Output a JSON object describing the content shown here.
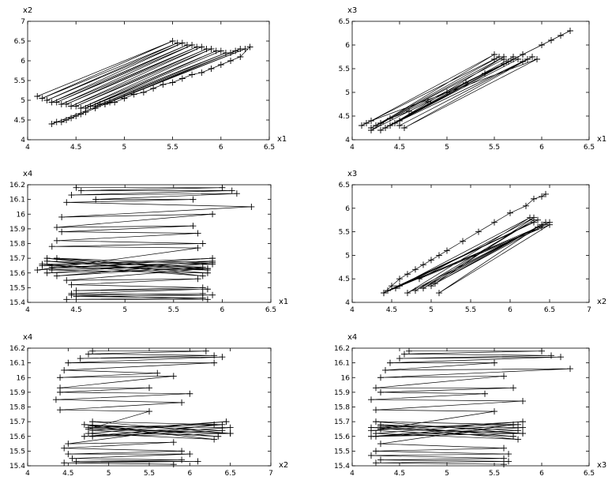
{
  "chart_data": [
    {
      "type": "line",
      "xlabel": "x1",
      "ylabel": "x2",
      "xlim": [
        4,
        6.5
      ],
      "ylim": [
        4,
        7
      ],
      "xticks": [
        "4",
        "4.5",
        "5",
        "5.5",
        "6",
        "6.5"
      ],
      "yticks": [
        "4",
        "4.5",
        "5",
        "5.5",
        "6",
        "6.5",
        "7"
      ],
      "marker": "+",
      "series": [
        {
          "x": [
            4.1,
            5.5,
            4.15,
            5.55,
            4.2,
            5.6,
            4.25,
            5.65,
            4.3,
            5.7,
            4.35,
            5.75,
            4.4,
            5.8,
            4.45,
            5.85,
            4.5,
            5.9,
            4.55,
            5.95,
            4.6,
            6.0,
            4.65,
            6.05,
            4.7,
            6.1,
            4.75,
            6.15,
            4.8,
            6.2,
            4.85,
            6.25,
            4.25,
            4.3,
            4.35,
            4.4,
            4.45,
            4.5,
            4.55,
            4.6,
            4.7,
            4.8,
            4.9,
            5.0,
            5.1,
            5.2,
            5.3,
            5.4,
            5.5,
            5.6,
            5.7,
            5.8,
            5.9,
            6.0,
            6.1,
            6.2,
            6.3
          ],
          "y": [
            5.1,
            6.5,
            5.05,
            6.45,
            5.0,
            6.45,
            4.95,
            6.4,
            4.95,
            6.4,
            4.9,
            6.35,
            4.9,
            6.35,
            4.85,
            6.3,
            4.85,
            6.3,
            4.8,
            6.25,
            4.8,
            6.25,
            4.85,
            6.2,
            4.85,
            6.2,
            4.9,
            6.25,
            4.9,
            6.3,
            4.95,
            6.3,
            4.4,
            4.45,
            4.45,
            4.5,
            4.55,
            4.6,
            4.65,
            4.7,
            4.8,
            4.9,
            4.95,
            5.05,
            5.15,
            5.2,
            5.3,
            5.4,
            5.45,
            5.55,
            5.65,
            5.7,
            5.8,
            5.9,
            6.0,
            6.1,
            6.35
          ]
        }
      ]
    },
    {
      "type": "line",
      "xlabel": "x1",
      "ylabel": "x3",
      "xlim": [
        4,
        6.5
      ],
      "ylim": [
        4,
        6.5
      ],
      "xticks": [
        "4",
        "4.5",
        "5",
        "5.5",
        "6",
        "6.5"
      ],
      "yticks": [
        "4",
        "4.5",
        "5",
        "5.5",
        "6",
        "6.5"
      ],
      "marker": "+",
      "series": [
        {
          "x": [
            4.1,
            5.5,
            4.15,
            5.55,
            4.2,
            5.6,
            4.25,
            5.65,
            4.3,
            5.7,
            4.35,
            5.75,
            4.4,
            5.8,
            4.45,
            5.85,
            4.5,
            5.9,
            4.55,
            5.95,
            4.2,
            5.5,
            4.3,
            5.6,
            4.4,
            5.7,
            4.5,
            5.8,
            4.2,
            4.4,
            4.6,
            4.8,
            5.0,
            5.2,
            5.4,
            5.6,
            5.8,
            6.0,
            6.1,
            6.2,
            6.3
          ],
          "y": [
            4.3,
            5.7,
            4.35,
            5.75,
            4.25,
            5.7,
            4.3,
            5.65,
            4.2,
            5.75,
            4.25,
            5.7,
            4.3,
            5.65,
            4.35,
            5.7,
            4.3,
            5.75,
            4.25,
            5.7,
            4.4,
            5.8,
            4.35,
            5.75,
            4.3,
            5.7,
            4.4,
            5.8,
            4.2,
            4.45,
            4.6,
            4.8,
            5.0,
            5.2,
            5.4,
            5.6,
            5.8,
            6.0,
            6.1,
            6.2,
            6.3
          ]
        }
      ]
    },
    {
      "type": "line",
      "xlabel": "x1",
      "ylabel": "x4",
      "xlim": [
        4,
        6.5
      ],
      "ylim": [
        15.4,
        16.2
      ],
      "xticks": [
        "4",
        "4.5",
        "5",
        "5.5",
        "6",
        "6.5"
      ],
      "yticks": [
        "15.4",
        "15.5",
        "15.6",
        "15.7",
        "15.8",
        "15.9",
        "16",
        "16.1",
        "16.2"
      ],
      "marker": "+",
      "series": [
        {
          "x": [
            4.5,
            6.0,
            4.55,
            6.1,
            4.45,
            6.15,
            4.7,
            5.7,
            4.4,
            6.3,
            4.35,
            5.9,
            4.3,
            5.7,
            4.35,
            5.75,
            4.3,
            5.8,
            4.25,
            5.75,
            4.1,
            5.9,
            4.15,
            5.85,
            4.2,
            5.9,
            4.15,
            5.8,
            4.2,
            5.85,
            4.25,
            5.9,
            4.3,
            5.8,
            4.2,
            5.85,
            4.25,
            5.9,
            4.3,
            5.85,
            4.4,
            5.75,
            4.45,
            5.8,
            4.5,
            5.85,
            4.45,
            5.9,
            4.5,
            5.8,
            4.4,
            5.85,
            4.45,
            5.8
          ],
          "y": [
            16.18,
            16.18,
            16.16,
            16.16,
            16.13,
            16.14,
            16.1,
            16.1,
            16.08,
            16.05,
            15.98,
            16.0,
            15.91,
            15.92,
            15.88,
            15.87,
            15.82,
            15.8,
            15.78,
            15.77,
            15.62,
            15.7,
            15.65,
            15.63,
            15.6,
            15.68,
            15.66,
            15.58,
            15.7,
            15.62,
            15.64,
            15.67,
            15.58,
            15.64,
            15.68,
            15.6,
            15.62,
            15.66,
            15.7,
            15.63,
            15.55,
            15.56,
            15.52,
            15.5,
            15.48,
            15.49,
            15.46,
            15.45,
            15.44,
            15.43,
            15.42,
            15.42,
            15.45,
            15.46
          ]
        }
      ]
    },
    {
      "type": "line",
      "xlabel": "x2",
      "ylabel": "x3",
      "xlim": [
        4,
        7
      ],
      "ylim": [
        4,
        6.5
      ],
      "xticks": [
        "4",
        "4.5",
        "5",
        "5.5",
        "6",
        "6.5",
        "7"
      ],
      "yticks": [
        "4",
        "4.5",
        "5",
        "5.5",
        "6",
        "6.5"
      ],
      "marker": "+",
      "series": [
        {
          "x": [
            4.4,
            6.4,
            4.45,
            6.3,
            4.55,
            6.35,
            4.6,
            6.25,
            4.7,
            6.4,
            4.8,
            6.3,
            4.9,
            6.45,
            5.0,
            6.35,
            5.1,
            6.5,
            4.85,
            6.3,
            5.05,
            6.5,
            4.4,
            4.5,
            4.6,
            4.7,
            4.8,
            4.9,
            5.0,
            5.1,
            5.2,
            5.4,
            5.6,
            5.8,
            6.0,
            6.2,
            6.3,
            6.4,
            6.45
          ],
          "y": [
            4.2,
            5.6,
            4.25,
            5.7,
            4.3,
            5.75,
            4.35,
            5.8,
            4.2,
            5.65,
            4.25,
            5.75,
            4.3,
            5.7,
            4.35,
            5.6,
            4.2,
            5.65,
            4.5,
            5.8,
            4.4,
            5.7,
            4.2,
            4.35,
            4.5,
            4.6,
            4.7,
            4.8,
            4.9,
            5.0,
            5.1,
            5.3,
            5.5,
            5.7,
            5.9,
            6.05,
            6.2,
            6.25,
            6.3
          ]
        }
      ]
    },
    {
      "type": "line",
      "xlabel": "x2",
      "ylabel": "x4",
      "xlim": [
        4,
        7
      ],
      "ylim": [
        15.4,
        16.2
      ],
      "xticks": [
        "4",
        "4.5",
        "5",
        "5.5",
        "6",
        "6.5",
        "7"
      ],
      "yticks": [
        "15.4",
        "15.5",
        "15.6",
        "15.7",
        "15.8",
        "15.9",
        "16",
        "16.1",
        "16.2"
      ],
      "marker": "+",
      "series": [
        {
          "x": [
            4.8,
            6.2,
            4.75,
            6.3,
            4.65,
            6.4,
            4.5,
            6.3,
            4.45,
            5.6,
            4.4,
            5.8,
            4.4,
            5.5,
            4.4,
            6.0,
            4.35,
            5.9,
            4.4,
            5.5,
            4.75,
            6.5,
            4.8,
            6.4,
            4.7,
            6.5,
            4.8,
            6.3,
            4.75,
            6.45,
            4.8,
            6.35,
            4.7,
            6.4,
            4.8,
            6.5,
            4.75,
            6.3,
            4.5,
            5.8,
            4.45,
            5.9,
            4.5,
            6.0,
            4.55,
            5.9,
            4.6,
            6.1,
            4.45,
            5.8
          ],
          "y": [
            16.18,
            16.18,
            16.16,
            16.15,
            16.13,
            16.14,
            16.1,
            16.1,
            16.05,
            16.03,
            16.0,
            16.01,
            15.93,
            15.93,
            15.9,
            15.89,
            15.85,
            15.83,
            15.78,
            15.77,
            15.65,
            15.62,
            15.7,
            15.68,
            15.6,
            15.66,
            15.67,
            15.58,
            15.62,
            15.7,
            15.64,
            15.6,
            15.68,
            15.64,
            15.6,
            15.62,
            15.66,
            15.68,
            15.55,
            15.56,
            15.52,
            15.5,
            15.48,
            15.48,
            15.45,
            15.44,
            15.43,
            15.43,
            15.42,
            15.41
          ]
        }
      ]
    },
    {
      "type": "line",
      "xlabel": "x3",
      "ylabel": "x4",
      "xlim": [
        4,
        6.5
      ],
      "ylim": [
        15.4,
        16.2
      ],
      "xticks": [
        "4",
        "4.5",
        "5",
        "5.5",
        "6",
        "6.5"
      ],
      "yticks": [
        "15.4",
        "15.5",
        "15.6",
        "15.7",
        "15.8",
        "15.9",
        "16",
        "16.1",
        "16.2"
      ],
      "marker": "+",
      "series": [
        {
          "x": [
            4.6,
            6.0,
            4.55,
            6.1,
            4.5,
            6.2,
            4.4,
            5.5,
            4.35,
            6.3,
            4.3,
            5.6,
            4.25,
            5.7,
            4.3,
            5.4,
            4.2,
            5.8,
            4.25,
            5.5,
            4.3,
            5.8,
            4.25,
            5.75,
            4.2,
            5.8,
            4.3,
            5.75,
            4.25,
            5.8,
            4.2,
            5.7,
            4.3,
            5.75,
            4.25,
            5.8,
            4.2,
            5.7,
            4.3,
            5.6,
            4.25,
            5.65,
            4.2,
            5.6,
            4.3,
            5.65,
            4.25,
            5.6
          ],
          "y": [
            16.18,
            16.18,
            16.16,
            16.15,
            16.13,
            16.14,
            16.1,
            16.1,
            16.05,
            16.06,
            16.0,
            16.01,
            15.93,
            15.93,
            15.9,
            15.89,
            15.85,
            15.84,
            15.78,
            15.77,
            15.65,
            15.62,
            15.7,
            15.68,
            15.6,
            15.66,
            15.67,
            15.58,
            15.62,
            15.7,
            15.64,
            15.6,
            15.68,
            15.64,
            15.6,
            15.62,
            15.66,
            15.68,
            15.55,
            15.52,
            15.5,
            15.48,
            15.47,
            15.45,
            15.44,
            15.43,
            15.42,
            15.41
          ]
        }
      ]
    }
  ]
}
